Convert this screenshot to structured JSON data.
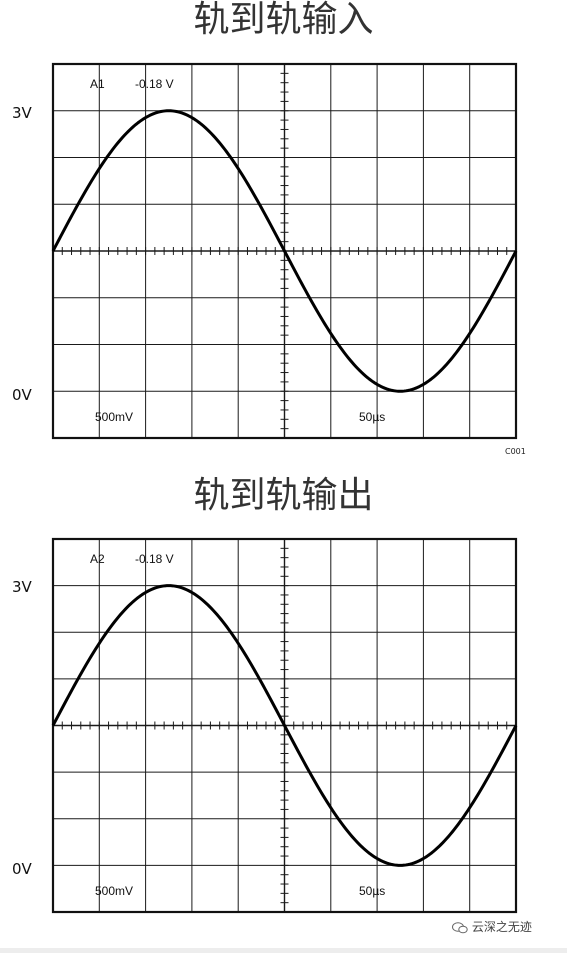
{
  "chart_data": [
    {
      "type": "line",
      "title": "轨到轨输入",
      "channel": "A1",
      "offset": "-0.18 V",
      "volts_per_div": "500mV",
      "time_per_div": "50µs",
      "ylabels": [
        "3V",
        "0V"
      ],
      "grid": true,
      "divisions": {
        "x": 10,
        "y": 8
      },
      "x_range_us": [
        0,
        500
      ],
      "y_range_v": [
        -0.5,
        3.5
      ],
      "series": [
        {
          "x": [
            0,
            50,
            100,
            150,
            200,
            250,
            300,
            350,
            400,
            450,
            500
          ],
          "y": [
            1.5,
            2.45,
            2.95,
            2.85,
            2.1,
            1.0,
            0.35,
            0.05,
            0.2,
            0.7,
            1.5
          ],
          "model": {
            "offset_v": 1.5,
            "amplitude_v": 1.5,
            "period_us": 500,
            "phase_us": 0
          }
        }
      ]
    },
    {
      "type": "line",
      "title": "轨到轨输出",
      "channel": "A2",
      "offset": "-0.18 V",
      "volts_per_div": "500mV",
      "time_per_div": "50µs",
      "ylabels": [
        "3V",
        "0V"
      ],
      "grid": true,
      "divisions": {
        "x": 10,
        "y": 8
      },
      "x_range_us": [
        0,
        500
      ],
      "y_range_v": [
        -0.5,
        3.5
      ],
      "series": [
        {
          "x": [
            0,
            50,
            100,
            150,
            200,
            250,
            300,
            350,
            400,
            450,
            500
          ],
          "y": [
            1.5,
            2.45,
            2.95,
            2.85,
            2.1,
            1.0,
            0.35,
            0.05,
            0.2,
            0.7,
            1.5
          ],
          "model": {
            "offset_v": 1.5,
            "amplitude_v": 1.5,
            "period_us": 500,
            "phase_us": 0
          }
        }
      ]
    }
  ],
  "figure_code": "C001",
  "watermark": "云深之无迹"
}
